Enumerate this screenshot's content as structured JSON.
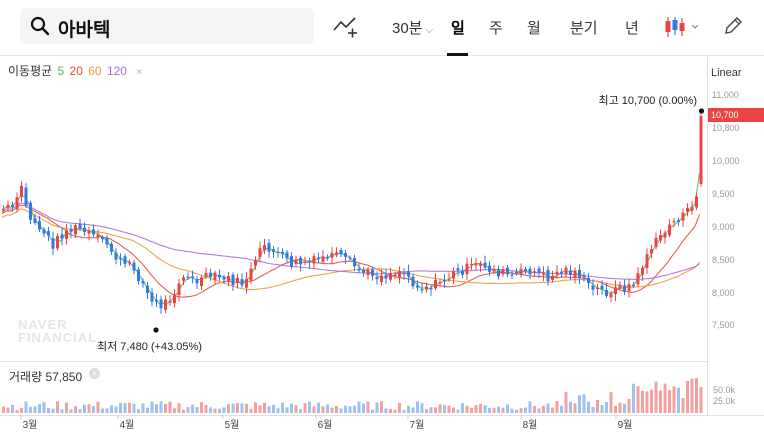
{
  "search": {
    "query": "아바텍"
  },
  "timeframes": [
    {
      "label": "30분",
      "active": false
    },
    {
      "label": "일",
      "active": true
    },
    {
      "label": "주",
      "active": false
    },
    {
      "label": "월",
      "active": false
    },
    {
      "label": "분기",
      "active": false
    },
    {
      "label": "년",
      "active": false
    }
  ],
  "legend": {
    "ma_label": "이동평균",
    "ma_periods": [
      {
        "label": "5",
        "color": "#5cb85c"
      },
      {
        "label": "20",
        "color": "#e74c3c"
      },
      {
        "label": "60",
        "color": "#f0983a"
      },
      {
        "label": "120",
        "color": "#a970d8"
      }
    ],
    "remove": "×"
  },
  "scale_mode": "Linear",
  "current_price_badge": "10,700",
  "high_annotation": "최고 10,700 (0.00%)",
  "low_annotation": "최저 7,480 (+43.05%)",
  "watermark": [
    "NAVER",
    "FINANCIAL"
  ],
  "volume": {
    "label": "거래량 57,850",
    "remove": "×"
  },
  "colors": {
    "up": "#ec4444",
    "down": "#2f7ae8",
    "accent": "#ec4444"
  },
  "chart_data": {
    "type": "candlestick",
    "x_tick_labels": [
      "3월",
      "4월",
      "5월",
      "6월",
      "7월",
      "8월",
      "9월"
    ],
    "y_tick_labels": [
      "11,000",
      "10,800",
      "10,000",
      "9,500",
      "9,000",
      "8,500",
      "8,000",
      "7,500"
    ],
    "y_ticks": [
      11000,
      10800,
      10000,
      9500,
      9000,
      8500,
      8000,
      7500
    ],
    "volume_tick_labels": [
      "50.0k",
      "25.0k"
    ],
    "high": 10700,
    "low": 7480,
    "last_close": 10700,
    "last_volume": 57850
  }
}
